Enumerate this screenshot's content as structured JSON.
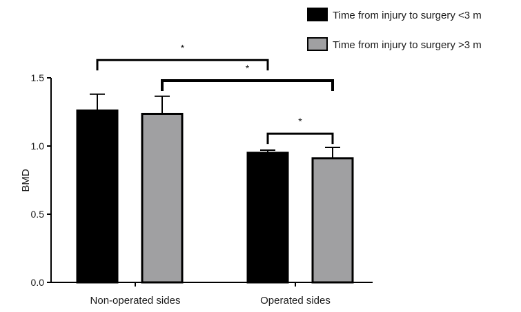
{
  "chart_data": {
    "type": "bar",
    "title": "",
    "xlabel": "",
    "ylabel": "BMD",
    "ylim": [
      0,
      1.5
    ],
    "yticks": [
      "0.0",
      "0.5",
      "1.0",
      "1.5"
    ],
    "categories": [
      "Non-operated sides",
      "Operated sides"
    ],
    "series": [
      {
        "name": "Time from injury to surgery <3 m",
        "color": "#000000",
        "values": [
          1.26,
          0.95
        ],
        "errors": [
          0.12,
          0.02
        ]
      },
      {
        "name": "Time from injury to surgery >3 m",
        "color": "#a0a0a2",
        "values": [
          1.235,
          0.91
        ],
        "errors": [
          0.13,
          0.08
        ]
      }
    ],
    "significance": [
      {
        "label": "*",
        "from_category": 0,
        "from_series": 0,
        "to_category": 1,
        "to_series": 0,
        "height": 1.63,
        "line": "thin"
      },
      {
        "label": "*",
        "from_category": 0,
        "from_series": 1,
        "to_category": 1,
        "to_series": 1,
        "height": 1.48,
        "line": "thick"
      },
      {
        "label": "*",
        "from_category": 1,
        "from_series": 0,
        "to_category": 1,
        "to_series": 1,
        "height": 1.09,
        "line": "thin"
      }
    ],
    "legend": "top-right",
    "grid": false
  }
}
